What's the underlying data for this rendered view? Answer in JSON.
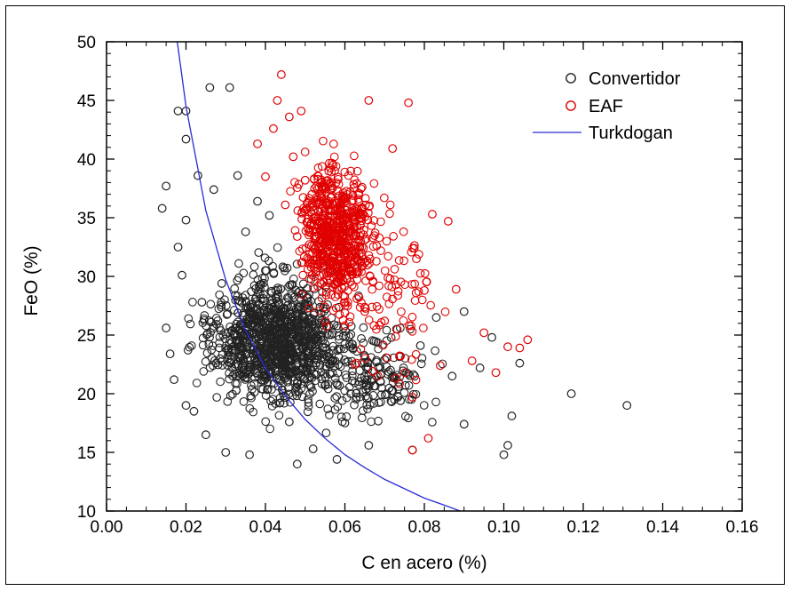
{
  "chart_data": {
    "type": "scatter",
    "xlabel": "C en acero (%)",
    "ylabel": "FeO (%)",
    "xlim": [
      0.0,
      0.16
    ],
    "ylim": [
      10,
      50
    ],
    "xticks": [
      "0.00",
      "0.02",
      "0.04",
      "0.06",
      "0.08",
      "0.10",
      "0.12",
      "0.14",
      "0.16"
    ],
    "yticks": [
      "10",
      "15",
      "20",
      "25",
      "30",
      "35",
      "40",
      "45",
      "50"
    ],
    "legend_position": "top-right",
    "grid": false,
    "series": [
      {
        "name": "Convertidor",
        "marker": "open-circle",
        "color": "#222222",
        "points": [
          [
            0.014,
            35.8
          ],
          [
            0.015,
            37.7
          ],
          [
            0.015,
            25.6
          ],
          [
            0.016,
            23.4
          ],
          [
            0.017,
            21.2
          ],
          [
            0.018,
            32.5
          ],
          [
            0.018,
            44.1
          ],
          [
            0.019,
            30.1
          ],
          [
            0.02,
            44.1
          ],
          [
            0.02,
            41.7
          ],
          [
            0.02,
            34.8
          ],
          [
            0.02,
            19.0
          ],
          [
            0.022,
            18.5
          ],
          [
            0.023,
            38.6
          ],
          [
            0.024,
            27.8
          ],
          [
            0.025,
            16.5
          ],
          [
            0.026,
            46.1
          ],
          [
            0.027,
            37.4
          ],
          [
            0.029,
            29.4
          ],
          [
            0.03,
            15.0
          ],
          [
            0.031,
            46.1
          ],
          [
            0.033,
            38.6
          ],
          [
            0.035,
            33.8
          ],
          [
            0.036,
            14.8
          ],
          [
            0.038,
            36.4
          ],
          [
            0.04,
            30.5
          ],
          [
            0.041,
            35.2
          ],
          [
            0.043,
            22.7
          ],
          [
            0.045,
            27.8
          ],
          [
            0.046,
            17.6
          ],
          [
            0.048,
            14.0
          ],
          [
            0.052,
            15.3
          ],
          [
            0.055,
            20.7
          ],
          [
            0.058,
            14.4
          ],
          [
            0.06,
            17.5
          ],
          [
            0.064,
            31.2
          ],
          [
            0.066,
            15.6
          ],
          [
            0.07,
            22.9
          ],
          [
            0.074,
            19.4
          ],
          [
            0.077,
            15.2
          ],
          [
            0.079,
            24.1
          ],
          [
            0.083,
            26.5
          ],
          [
            0.087,
            21.5
          ],
          [
            0.09,
            27.0
          ],
          [
            0.09,
            17.4
          ],
          [
            0.094,
            22.2
          ],
          [
            0.097,
            24.8
          ],
          [
            0.1,
            14.8
          ],
          [
            0.101,
            15.6
          ],
          [
            0.102,
            18.1
          ],
          [
            0.104,
            22.6
          ],
          [
            0.117,
            20.0
          ],
          [
            0.131,
            19.0
          ]
        ]
      },
      {
        "name": "EAF",
        "marker": "open-circle",
        "color": "#e00000",
        "points": [
          [
            0.038,
            41.3
          ],
          [
            0.04,
            38.5
          ],
          [
            0.042,
            42.6
          ],
          [
            0.043,
            45.0
          ],
          [
            0.044,
            47.2
          ],
          [
            0.045,
            36.1
          ],
          [
            0.046,
            43.6
          ],
          [
            0.047,
            40.2
          ],
          [
            0.048,
            33.4
          ],
          [
            0.049,
            44.1
          ],
          [
            0.05,
            38.2
          ],
          [
            0.051,
            29.8
          ],
          [
            0.052,
            35.6
          ],
          [
            0.053,
            31.1
          ],
          [
            0.054,
            36.8
          ],
          [
            0.055,
            27.4
          ],
          [
            0.056,
            34.2
          ],
          [
            0.057,
            39.5
          ],
          [
            0.058,
            29.5
          ],
          [
            0.059,
            33.0
          ],
          [
            0.06,
            25.8
          ],
          [
            0.061,
            30.7
          ],
          [
            0.062,
            36.9
          ],
          [
            0.063,
            28.1
          ],
          [
            0.064,
            23.8
          ],
          [
            0.065,
            27.0
          ],
          [
            0.066,
            45.0
          ],
          [
            0.067,
            21.9
          ],
          [
            0.068,
            32.6
          ],
          [
            0.07,
            26.2
          ],
          [
            0.072,
            40.9
          ],
          [
            0.074,
            23.2
          ],
          [
            0.076,
            44.8
          ],
          [
            0.077,
            19.7
          ],
          [
            0.078,
            31.5
          ],
          [
            0.08,
            28.8
          ],
          [
            0.082,
            35.3
          ],
          [
            0.084,
            22.4
          ],
          [
            0.086,
            34.7
          ],
          [
            0.088,
            28.9
          ],
          [
            0.092,
            22.8
          ],
          [
            0.095,
            25.2
          ],
          [
            0.098,
            21.8
          ],
          [
            0.101,
            24.0
          ],
          [
            0.104,
            23.9
          ],
          [
            0.106,
            24.6
          ],
          [
            0.077,
            15.2
          ],
          [
            0.081,
            16.2
          ]
        ]
      },
      {
        "name": "Turkdogan",
        "type": "line",
        "color": "#2b2bd6",
        "points": [
          [
            0.0178,
            50.0
          ],
          [
            0.02,
            44.5
          ],
          [
            0.025,
            35.6
          ],
          [
            0.03,
            29.7
          ],
          [
            0.035,
            25.4
          ],
          [
            0.04,
            22.2
          ],
          [
            0.045,
            19.8
          ],
          [
            0.05,
            17.8
          ],
          [
            0.055,
            16.2
          ],
          [
            0.06,
            14.8
          ],
          [
            0.065,
            13.7
          ],
          [
            0.07,
            12.7
          ],
          [
            0.075,
            11.9
          ],
          [
            0.08,
            11.1
          ],
          [
            0.085,
            10.5
          ],
          [
            0.089,
            10.0
          ]
        ]
      }
    ]
  }
}
